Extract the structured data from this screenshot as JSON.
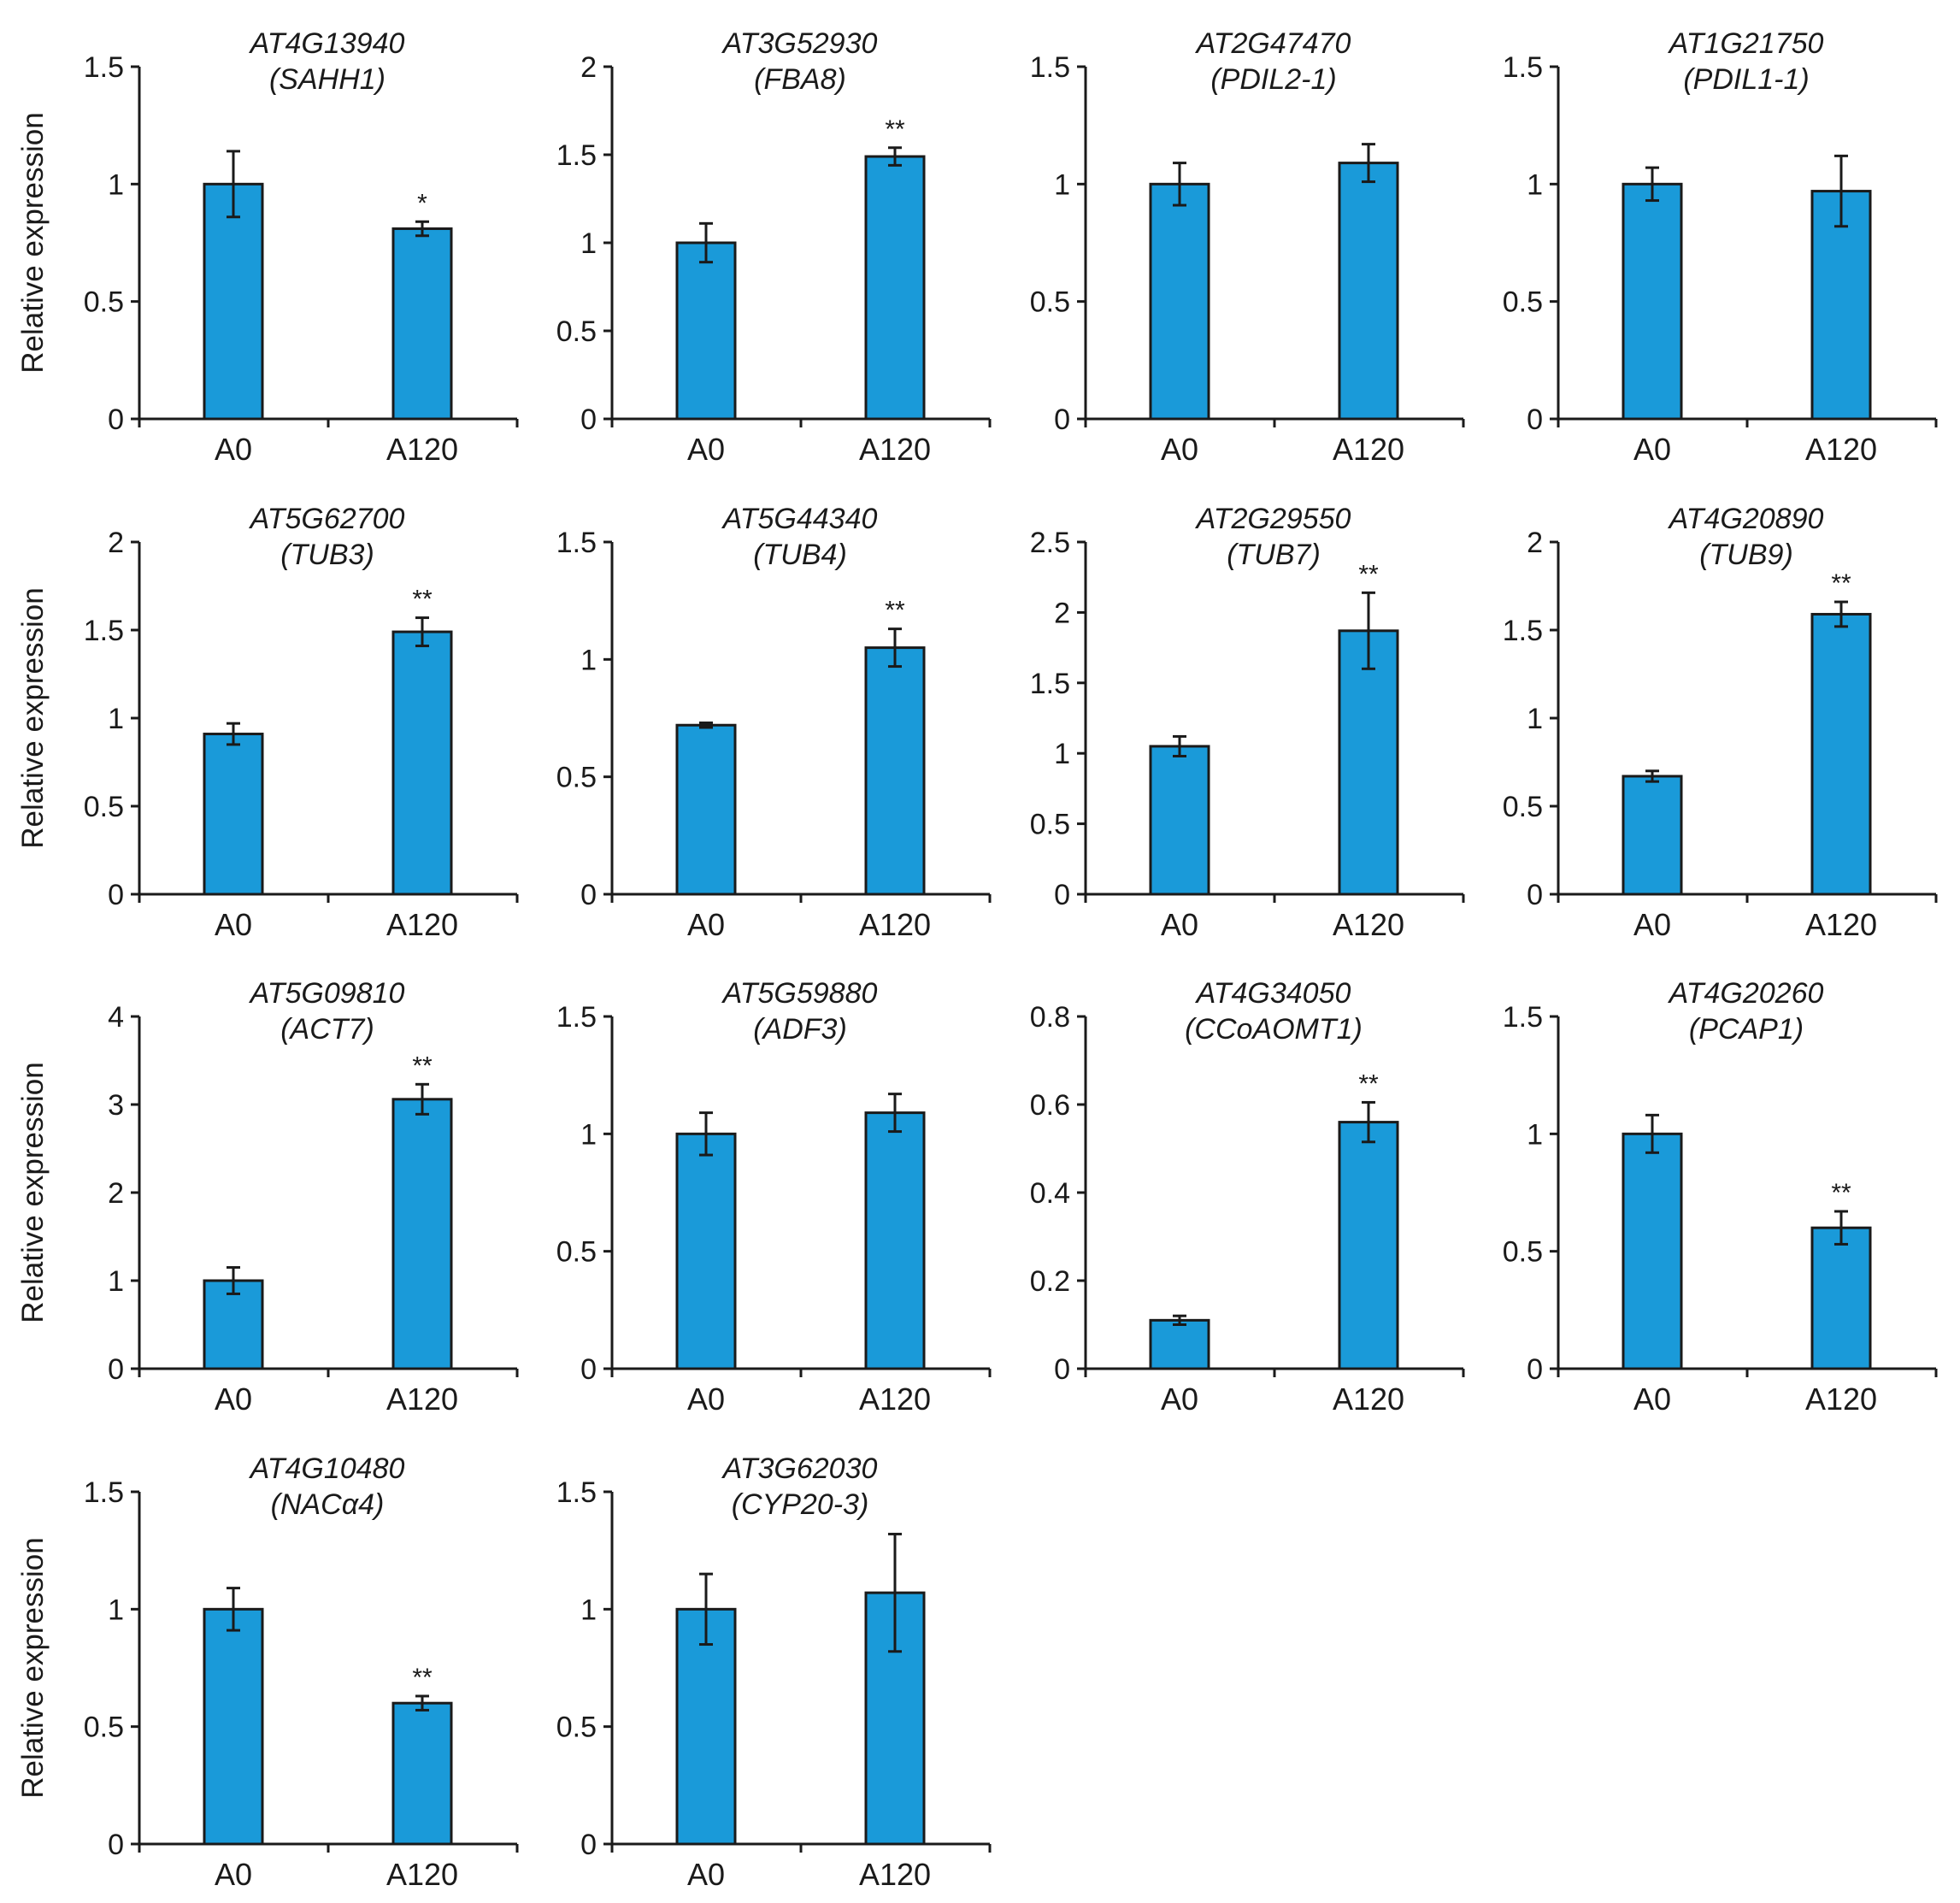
{
  "styles": {
    "bar_color": "#1a9ad9",
    "stroke_color": "#1a1a1a"
  },
  "chart_data": [
    {
      "type": "bar",
      "title": "AT4G13940",
      "subtitle": "(SAHH1)",
      "ylabel": "Relative expression",
      "categories": [
        "A0",
        "A120"
      ],
      "values": [
        1.0,
        0.81
      ],
      "errors": [
        0.14,
        0.03
      ],
      "significance": [
        "",
        "*"
      ],
      "ylim": [
        0,
        1.5
      ],
      "yticks": [
        0,
        0.5,
        1,
        1.5
      ],
      "ytick_labels": [
        "0",
        "0.5",
        "1",
        "1.5"
      ]
    },
    {
      "type": "bar",
      "title": "AT3G52930",
      "subtitle": "(FBA8)",
      "ylabel": "",
      "categories": [
        "A0",
        "A120"
      ],
      "values": [
        1.0,
        1.49
      ],
      "errors": [
        0.11,
        0.05
      ],
      "significance": [
        "",
        "**"
      ],
      "ylim": [
        0,
        2
      ],
      "yticks": [
        0,
        0.5,
        1,
        1.5,
        2
      ],
      "ytick_labels": [
        "0",
        "0.5",
        "1",
        "1.5",
        "2"
      ]
    },
    {
      "type": "bar",
      "title": "AT2G47470",
      "subtitle": "(PDIL2-1)",
      "ylabel": "",
      "categories": [
        "A0",
        "A120"
      ],
      "values": [
        1.0,
        1.09
      ],
      "errors": [
        0.09,
        0.08
      ],
      "significance": [
        "",
        ""
      ],
      "ylim": [
        0,
        1.5
      ],
      "yticks": [
        0,
        0.5,
        1,
        1.5
      ],
      "ytick_labels": [
        "0",
        "0.5",
        "1",
        "1.5"
      ]
    },
    {
      "type": "bar",
      "title": "AT1G21750",
      "subtitle": "(PDIL1-1)",
      "ylabel": "",
      "categories": [
        "A0",
        "A120"
      ],
      "values": [
        1.0,
        0.97
      ],
      "errors": [
        0.07,
        0.15
      ],
      "significance": [
        "",
        ""
      ],
      "ylim": [
        0,
        1.5
      ],
      "yticks": [
        0,
        0.5,
        1,
        1.5
      ],
      "ytick_labels": [
        "0",
        "0.5",
        "1",
        "1.5"
      ]
    },
    {
      "type": "bar",
      "title": "AT5G62700",
      "subtitle": "(TUB3)",
      "ylabel": "Relative expression",
      "categories": [
        "A0",
        "A120"
      ],
      "values": [
        0.91,
        1.49
      ],
      "errors": [
        0.06,
        0.08
      ],
      "significance": [
        "",
        "**"
      ],
      "ylim": [
        0,
        2
      ],
      "yticks": [
        0,
        0.5,
        1,
        1.5,
        2
      ],
      "ytick_labels": [
        "0",
        "0.5",
        "1",
        "1.5",
        "2"
      ]
    },
    {
      "type": "bar",
      "title": "AT5G44340",
      "subtitle": "(TUB4)",
      "ylabel": "",
      "categories": [
        "A0",
        "A120"
      ],
      "values": [
        0.72,
        1.05
      ],
      "errors": [
        0.01,
        0.08
      ],
      "significance": [
        "",
        "**"
      ],
      "ylim": [
        0,
        1.5
      ],
      "yticks": [
        0,
        0.5,
        1,
        1.5
      ],
      "ytick_labels": [
        "0",
        "0.5",
        "1",
        "1.5"
      ]
    },
    {
      "type": "bar",
      "title": "AT2G29550",
      "subtitle": "(TUB7)",
      "ylabel": "",
      "categories": [
        "A0",
        "A120"
      ],
      "values": [
        1.05,
        1.87
      ],
      "errors": [
        0.07,
        0.27
      ],
      "significance": [
        "",
        "**"
      ],
      "ylim": [
        0,
        2.5
      ],
      "yticks": [
        0,
        0.5,
        1,
        1.5,
        2,
        2.5
      ],
      "ytick_labels": [
        "0",
        "0.5",
        "1",
        "1.5",
        "2",
        "2.5"
      ]
    },
    {
      "type": "bar",
      "title": "AT4G20890",
      "subtitle": "(TUB9)",
      "ylabel": "",
      "categories": [
        "A0",
        "A120"
      ],
      "values": [
        0.67,
        1.59
      ],
      "errors": [
        0.03,
        0.07
      ],
      "significance": [
        "",
        "**"
      ],
      "ylim": [
        0,
        2
      ],
      "yticks": [
        0,
        0.5,
        1,
        1.5,
        2
      ],
      "ytick_labels": [
        "0",
        "0.5",
        "1",
        "1.5",
        "2"
      ]
    },
    {
      "type": "bar",
      "title": "AT5G09810",
      "subtitle": "(ACT7)",
      "ylabel": "Relative expression",
      "categories": [
        "A0",
        "A120"
      ],
      "values": [
        1.0,
        3.06
      ],
      "errors": [
        0.15,
        0.17
      ],
      "significance": [
        "",
        "**"
      ],
      "ylim": [
        0,
        4
      ],
      "yticks": [
        0,
        1,
        2,
        3,
        4
      ],
      "ytick_labels": [
        "0",
        "1",
        "2",
        "3",
        "4"
      ]
    },
    {
      "type": "bar",
      "title": "AT5G59880",
      "subtitle": "(ADF3)",
      "ylabel": "",
      "categories": [
        "A0",
        "A120"
      ],
      "values": [
        1.0,
        1.09
      ],
      "errors": [
        0.09,
        0.08
      ],
      "significance": [
        "",
        ""
      ],
      "ylim": [
        0,
        1.5
      ],
      "yticks": [
        0,
        0.5,
        1,
        1.5
      ],
      "ytick_labels": [
        "0",
        "0.5",
        "1",
        "1.5"
      ]
    },
    {
      "type": "bar",
      "title": "AT4G34050",
      "subtitle": "(CCoAOMT1)",
      "ylabel": "",
      "categories": [
        "A0",
        "A120"
      ],
      "values": [
        0.11,
        0.56
      ],
      "errors": [
        0.01,
        0.045
      ],
      "significance": [
        "",
        "**"
      ],
      "ylim": [
        0,
        0.8
      ],
      "yticks": [
        0,
        0.2,
        0.4,
        0.6,
        0.8
      ],
      "ytick_labels": [
        "0",
        "0.2",
        "0.4",
        "0.6",
        "0.8"
      ]
    },
    {
      "type": "bar",
      "title": "AT4G20260",
      "subtitle": "(PCAP1)",
      "ylabel": "",
      "categories": [
        "A0",
        "A120"
      ],
      "values": [
        1.0,
        0.6
      ],
      "errors": [
        0.08,
        0.07
      ],
      "significance": [
        "",
        "**"
      ],
      "ylim": [
        0,
        1.5
      ],
      "yticks": [
        0,
        0.5,
        1,
        1.5
      ],
      "ytick_labels": [
        "0",
        "0.5",
        "1",
        "1.5"
      ]
    },
    {
      "type": "bar",
      "title": "AT4G10480",
      "subtitle": "(NACα4)",
      "ylabel": "Relative expression",
      "categories": [
        "A0",
        "A120"
      ],
      "values": [
        1.0,
        0.6
      ],
      "errors": [
        0.09,
        0.03
      ],
      "significance": [
        "",
        "**"
      ],
      "ylim": [
        0,
        1.5
      ],
      "yticks": [
        0,
        0.5,
        1,
        1.5
      ],
      "ytick_labels": [
        "0",
        "0.5",
        "1",
        "1.5"
      ]
    },
    {
      "type": "bar",
      "title": "AT3G62030",
      "subtitle": "(CYP20-3)",
      "ylabel": "",
      "categories": [
        "A0",
        "A120"
      ],
      "values": [
        1.0,
        1.07
      ],
      "errors": [
        0.15,
        0.25
      ],
      "significance": [
        "",
        ""
      ],
      "ylim": [
        0,
        1.5
      ],
      "yticks": [
        0,
        0.5,
        1,
        1.5
      ],
      "ytick_labels": [
        "0",
        "0.5",
        "1",
        "1.5"
      ]
    }
  ]
}
